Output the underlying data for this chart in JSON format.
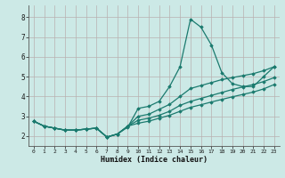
{
  "xlabel": "Humidex (Indice chaleur)",
  "bg_color": "#cce9e6",
  "grid_color": "#b8b0b0",
  "line_color": "#1a7a6e",
  "xlim": [
    -0.5,
    23.5
  ],
  "ylim": [
    1.5,
    8.6
  ],
  "xticks": [
    0,
    1,
    2,
    3,
    4,
    5,
    6,
    7,
    8,
    9,
    10,
    11,
    12,
    13,
    14,
    15,
    16,
    17,
    18,
    19,
    20,
    21,
    22,
    23
  ],
  "yticks": [
    2,
    3,
    4,
    5,
    6,
    7,
    8
  ],
  "series": [
    [
      2.75,
      2.5,
      2.4,
      2.3,
      2.3,
      2.35,
      2.4,
      1.95,
      2.1,
      2.45,
      3.4,
      3.5,
      3.75,
      4.5,
      5.5,
      7.9,
      7.5,
      6.6,
      5.2,
      4.65,
      4.5,
      4.5,
      5.0,
      5.5
    ],
    [
      2.75,
      2.5,
      2.4,
      2.3,
      2.3,
      2.35,
      2.4,
      1.95,
      2.1,
      2.5,
      3.0,
      3.1,
      3.35,
      3.6,
      4.0,
      4.4,
      4.55,
      4.7,
      4.85,
      4.95,
      5.05,
      5.15,
      5.3,
      5.5
    ],
    [
      2.75,
      2.5,
      2.4,
      2.3,
      2.3,
      2.35,
      2.4,
      1.95,
      2.1,
      2.5,
      2.8,
      2.9,
      3.05,
      3.25,
      3.55,
      3.75,
      3.9,
      4.05,
      4.2,
      4.35,
      4.48,
      4.6,
      4.75,
      4.95
    ],
    [
      2.75,
      2.5,
      2.4,
      2.3,
      2.3,
      2.35,
      2.4,
      1.95,
      2.1,
      2.5,
      2.65,
      2.75,
      2.9,
      3.05,
      3.25,
      3.45,
      3.58,
      3.72,
      3.85,
      3.98,
      4.1,
      4.22,
      4.38,
      4.6
    ]
  ]
}
